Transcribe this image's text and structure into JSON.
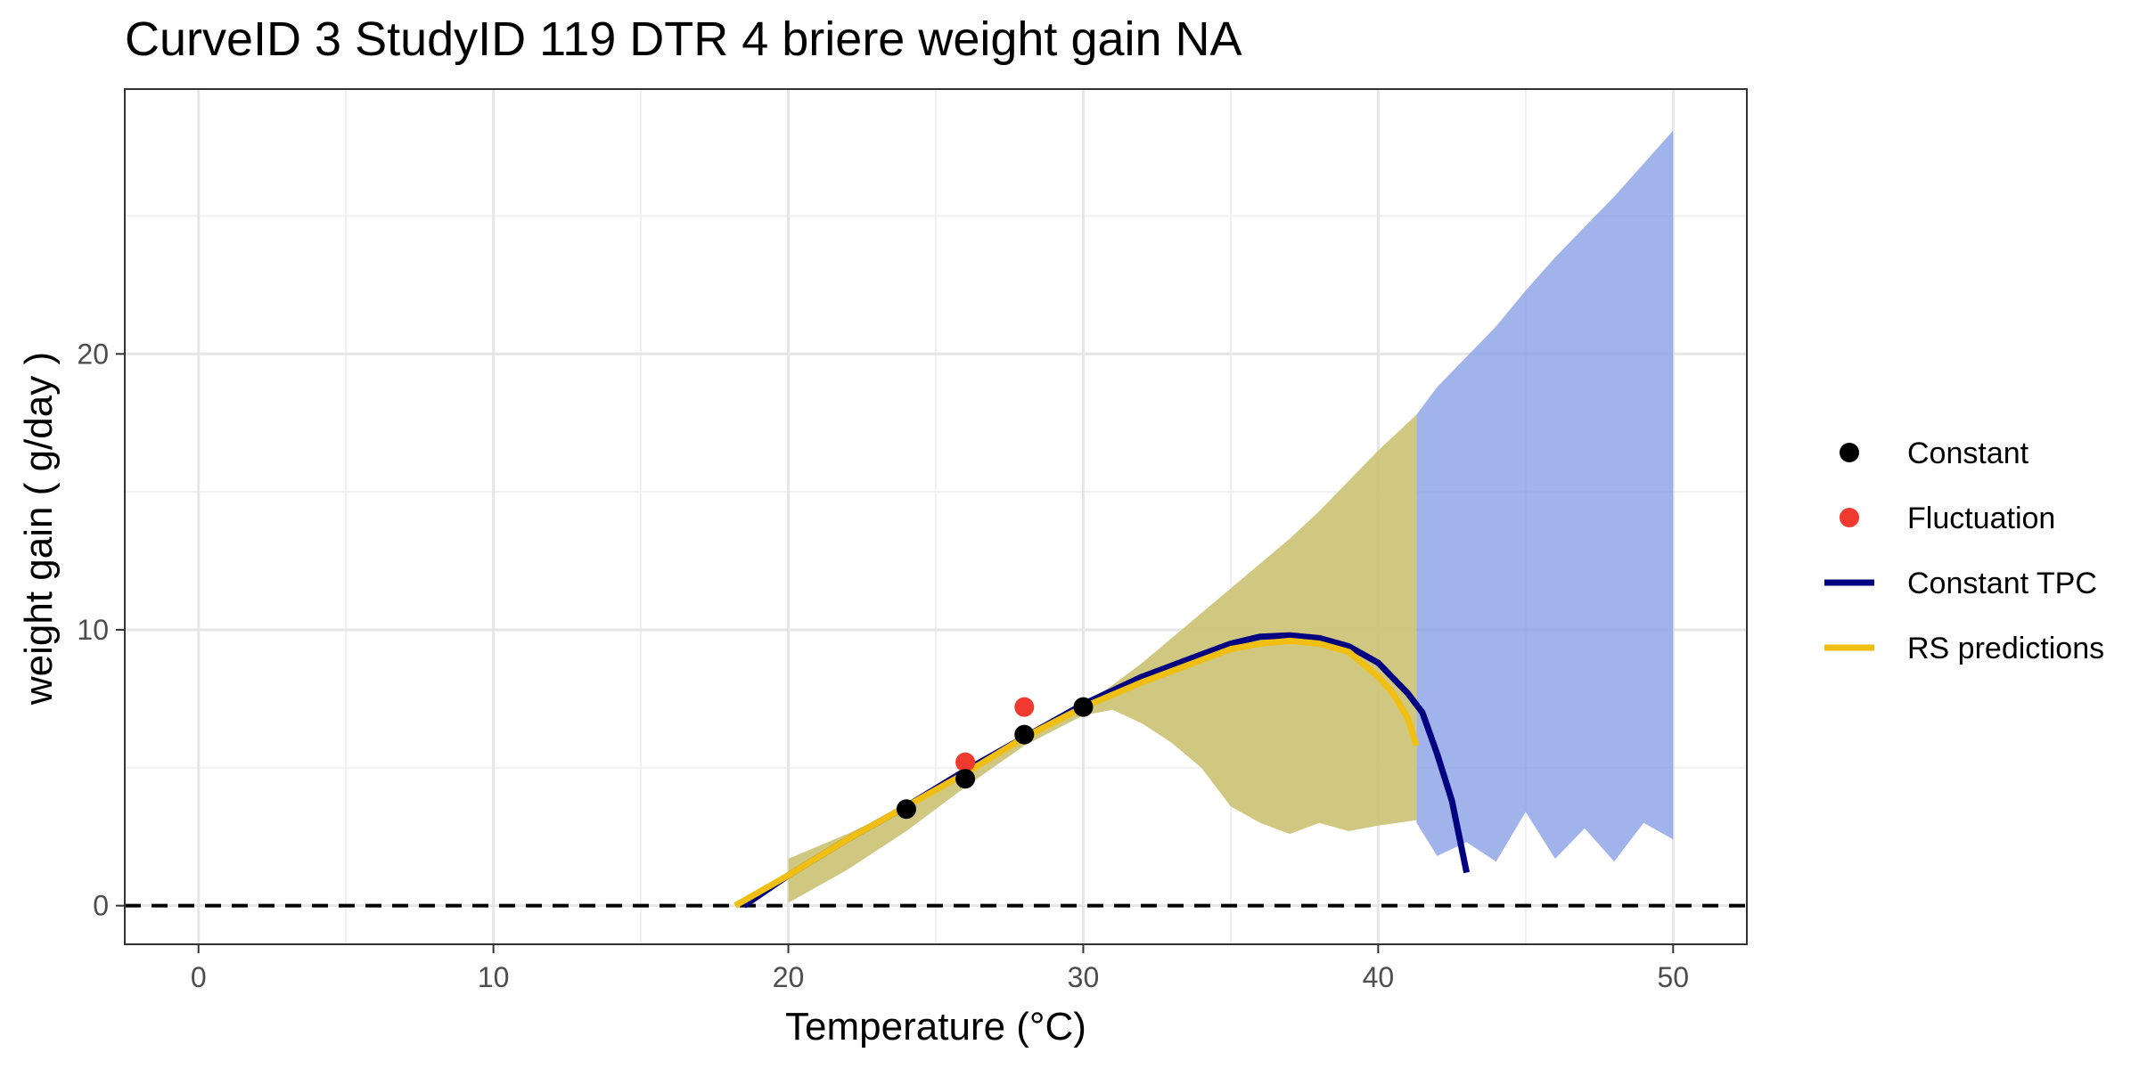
{
  "chart_data": {
    "type": "line",
    "title": "CurveID 3 StudyID 119 DTR 4 briere weight gain NA",
    "xlabel": "Temperature (°C)",
    "ylabel": "weight gain ( g/day )",
    "xlim": [
      -2.5,
      52.5
    ],
    "ylim": [
      -1.4,
      29.6
    ],
    "x_ticks": [
      0,
      10,
      20,
      30,
      40,
      50
    ],
    "x_tick_labels": [
      "0",
      "10",
      "20",
      "30",
      "40",
      "50"
    ],
    "y_ticks": [
      0,
      10,
      20
    ],
    "y_tick_labels": [
      "0",
      "10",
      "20"
    ],
    "x_minor_grid": [
      -5,
      5,
      15,
      25,
      35,
      45
    ],
    "y_minor_grid": [
      5,
      15,
      25
    ],
    "grid": true,
    "reference_line": {
      "y": 0,
      "style": "dashed",
      "color": "#000000"
    },
    "legend_position": "right",
    "legend": [
      {
        "label": "Constant",
        "kind": "point",
        "color": "#000000"
      },
      {
        "label": "Fluctuation",
        "kind": "point",
        "color": "#f03a2f"
      },
      {
        "label": "Constant TPC",
        "kind": "line",
        "color": "#000080"
      },
      {
        "label": "RS predictions",
        "kind": "line",
        "color": "#f0bf12"
      }
    ],
    "colors": {
      "constant_point": "#000000",
      "fluctuation_point": "#f03a2f",
      "constant_tpc": "#000080",
      "constant_band": "#8aa0e6",
      "rs_predictions": "#f0bf12",
      "rs_band": "#f5d76a",
      "overlap_band": "#cdc47a"
    },
    "series": [
      {
        "name": "Constant",
        "kind": "points",
        "x": [
          24,
          26,
          28,
          30
        ],
        "y": [
          3.5,
          4.6,
          6.2,
          7.2
        ]
      },
      {
        "name": "Fluctuation",
        "kind": "points",
        "x": [
          26,
          28
        ],
        "y": [
          5.2,
          7.2
        ]
      },
      {
        "name": "Constant TPC",
        "kind": "line",
        "x": [
          18.5,
          20,
          22,
          24,
          26,
          28,
          30,
          32,
          34,
          35,
          36,
          37,
          38,
          39,
          40,
          41,
          41.5,
          42,
          42.5,
          43
        ],
        "y": [
          0,
          1.1,
          2.4,
          3.6,
          4.9,
          6.1,
          7.3,
          8.3,
          9.1,
          9.5,
          9.75,
          9.8,
          9.7,
          9.4,
          8.8,
          7.7,
          7.0,
          5.5,
          3.8,
          1.2
        ]
      },
      {
        "name": "RS predictions",
        "kind": "line",
        "x": [
          18.2,
          20,
          22,
          24,
          26,
          28,
          30,
          32,
          34,
          35,
          36,
          37,
          38,
          39,
          40,
          40.5,
          41,
          41.3
        ],
        "y": [
          0,
          1.1,
          2.4,
          3.6,
          4.8,
          6.1,
          7.2,
          8.1,
          8.9,
          9.3,
          9.5,
          9.6,
          9.5,
          9.2,
          8.3,
          7.7,
          6.8,
          5.8
        ]
      },
      {
        "name": "Constant TPC interval",
        "kind": "band",
        "x": [
          41.3,
          42,
          43,
          44,
          45,
          46,
          47,
          48,
          49,
          50
        ],
        "upper": [
          17.8,
          18.8,
          19.9,
          21.0,
          22.3,
          23.5,
          24.6,
          25.7,
          26.9,
          28.1
        ],
        "lower": [
          3.0,
          1.8,
          2.3,
          1.6,
          3.4,
          1.7,
          2.8,
          1.6,
          3.0,
          2.4
        ]
      },
      {
        "name": "RS predictions interval",
        "kind": "band",
        "x": [
          20,
          22,
          24,
          26,
          28,
          30,
          31,
          32,
          33,
          34,
          35,
          36,
          37,
          38,
          39,
          40,
          41.3
        ],
        "upper": [
          1.7,
          2.6,
          3.6,
          4.8,
          6.1,
          7.3,
          8.0,
          8.8,
          9.7,
          10.6,
          11.5,
          12.4,
          13.3,
          14.3,
          15.4,
          16.5,
          17.8
        ],
        "lower": [
          0.1,
          1.3,
          2.7,
          4.3,
          5.8,
          6.9,
          7.1,
          6.6,
          5.9,
          5.0,
          3.6,
          3.0,
          2.6,
          3.0,
          2.7,
          2.9,
          3.1
        ]
      }
    ]
  }
}
